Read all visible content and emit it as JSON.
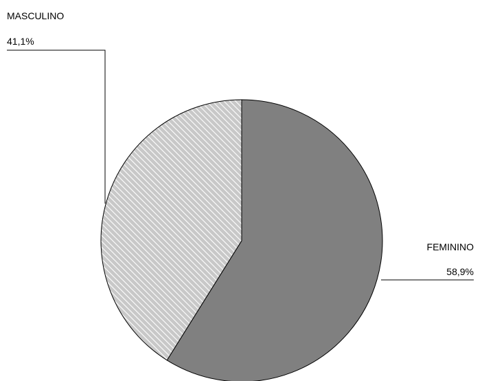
{
  "chart_data": {
    "type": "pie",
    "slices": [
      {
        "label": "FEMININO",
        "value": 58.9,
        "value_label": "58,9%",
        "fill": "#808080",
        "pattern": "solid"
      },
      {
        "label": "MASCULINO",
        "value": 41.1,
        "value_label": "41,1%",
        "fill": "#d4d4d4",
        "pattern": "diagonal-hatch"
      }
    ],
    "start_angle_deg": 0,
    "direction": "clockwise",
    "legend": "none"
  },
  "colors": {
    "outline": "#000000",
    "hatch_line": "#ffffff",
    "hatch_base": "#c8c8c8",
    "solid_fill": "#808080"
  }
}
